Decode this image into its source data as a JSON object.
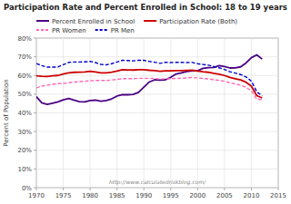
{
  "chart_data": {
    "type": "line",
    "title": "Participation Rate and Percent Enrolled in School: 18 to 19 years",
    "y_label": "Percent of Population",
    "annotations": [
      "http://www.calculatedriskblog.com/"
    ],
    "x": [
      1970,
      1971,
      1972,
      1973,
      1974,
      1975,
      1976,
      1977,
      1978,
      1979,
      1980,
      1981,
      1982,
      1983,
      1984,
      1985,
      1986,
      1987,
      1988,
      1989,
      1990,
      1991,
      1992,
      1993,
      1994,
      1995,
      1996,
      1997,
      1998,
      1999,
      2000,
      2001,
      2002,
      2003,
      2004,
      2005,
      2006,
      2007,
      2008,
      2009,
      2010,
      2011,
      2012
    ],
    "xlim": [
      1970,
      2015
    ],
    "xticks": [
      1970,
      1975,
      1980,
      1985,
      1990,
      1995,
      2000,
      2005,
      2010,
      2015
    ],
    "ylim": [
      0.0,
      0.8
    ],
    "yticks": [
      {
        "value": 0.0,
        "label": "0%"
      },
      {
        "value": 0.1,
        "label": "10%"
      },
      {
        "value": 0.2,
        "label": "20%"
      },
      {
        "value": 0.3,
        "label": "30%"
      },
      {
        "value": 0.4,
        "label": "40%"
      },
      {
        "value": 0.5,
        "label": "50%"
      },
      {
        "value": 0.6,
        "label": "60%"
      },
      {
        "value": 0.7,
        "label": "70%"
      },
      {
        "value": 0.8,
        "label": "80%"
      }
    ],
    "grid": true,
    "legend": "top",
    "series": [
      {
        "name": "Percent Enrolled in School",
        "color": "#4b0082",
        "line_style": "solid",
        "values": [
          0.487,
          0.454,
          0.445,
          0.452,
          0.459,
          0.47,
          0.477,
          0.468,
          0.46,
          0.459,
          0.466,
          0.468,
          0.462,
          0.466,
          0.475,
          0.49,
          0.497,
          0.497,
          0.499,
          0.51,
          0.538,
          0.565,
          0.577,
          0.575,
          0.577,
          0.59,
          0.608,
          0.614,
          0.621,
          0.625,
          0.625,
          0.638,
          0.642,
          0.643,
          0.653,
          0.648,
          0.64,
          0.641,
          0.646,
          0.667,
          0.695,
          0.71,
          0.688
        ]
      },
      {
        "name": "Participation Rate (Both)",
        "color": "#cc0000",
        "line_style": "solid",
        "values": [
          0.598,
          0.596,
          0.595,
          0.598,
          0.6,
          0.608,
          0.614,
          0.617,
          0.618,
          0.619,
          0.622,
          0.619,
          0.614,
          0.614,
          0.618,
          0.624,
          0.631,
          0.63,
          0.629,
          0.631,
          0.631,
          0.628,
          0.626,
          0.622,
          0.625,
          0.625,
          0.626,
          0.626,
          0.627,
          0.628,
          0.624,
          0.62,
          0.617,
          0.611,
          0.607,
          0.6,
          0.59,
          0.583,
          0.576,
          0.564,
          0.543,
          0.492,
          0.48
        ]
      },
      {
        "name": "PR Women",
        "color": "#ff69b4",
        "line_style": "dashed",
        "values": [
          0.534,
          0.543,
          0.548,
          0.553,
          0.556,
          0.558,
          0.561,
          0.565,
          0.567,
          0.569,
          0.572,
          0.573,
          0.573,
          0.573,
          0.576,
          0.579,
          0.583,
          0.583,
          0.583,
          0.585,
          0.585,
          0.585,
          0.584,
          0.581,
          0.582,
          0.583,
          0.584,
          0.585,
          0.587,
          0.589,
          0.587,
          0.584,
          0.582,
          0.577,
          0.574,
          0.569,
          0.561,
          0.555,
          0.548,
          0.537,
          0.518,
          0.473,
          0.471
        ]
      },
      {
        "name": "PR Men",
        "color": "#0000cc",
        "line_style": "dashed",
        "values": [
          0.664,
          0.653,
          0.645,
          0.645,
          0.645,
          0.658,
          0.67,
          0.672,
          0.672,
          0.673,
          0.675,
          0.669,
          0.659,
          0.657,
          0.663,
          0.672,
          0.681,
          0.68,
          0.678,
          0.681,
          0.681,
          0.675,
          0.671,
          0.665,
          0.67,
          0.669,
          0.67,
          0.67,
          0.669,
          0.67,
          0.663,
          0.659,
          0.655,
          0.648,
          0.641,
          0.632,
          0.62,
          0.613,
          0.605,
          0.592,
          0.57,
          0.513,
          0.491
        ]
      }
    ]
  }
}
